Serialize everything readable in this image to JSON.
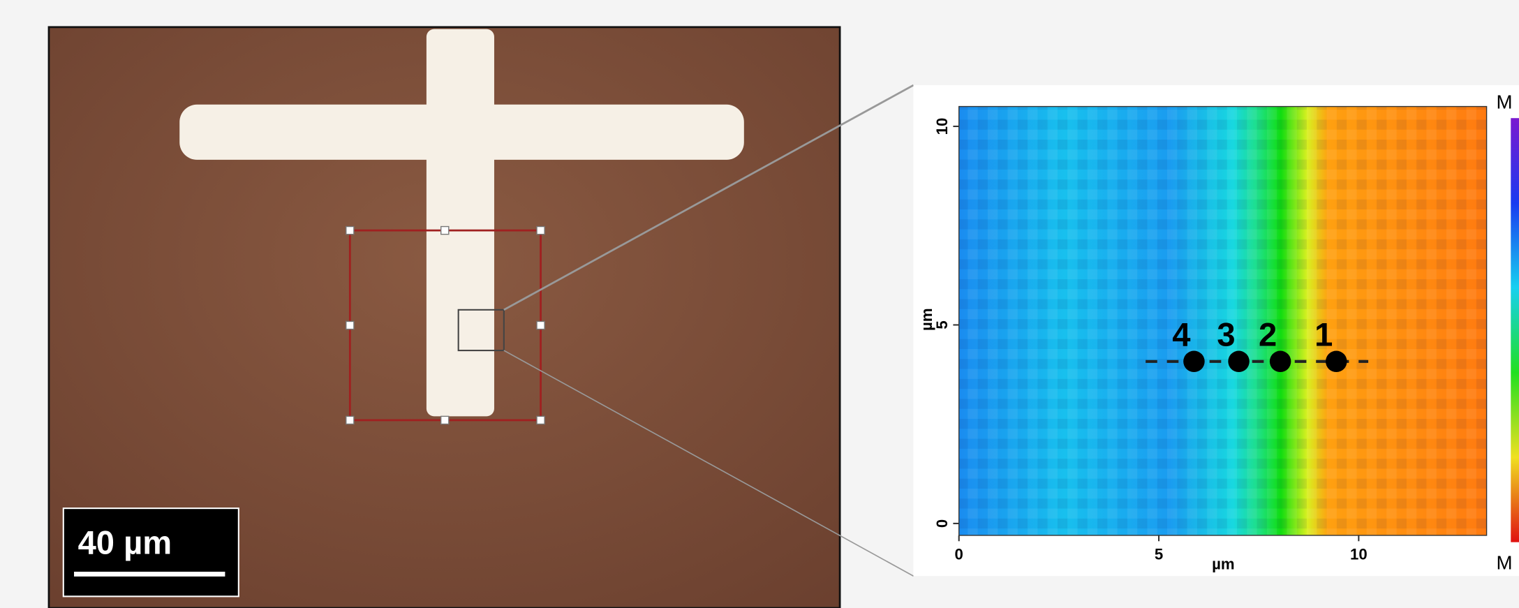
{
  "scale_bar": "40 µm",
  "chart_data": {
    "type": "heatmap",
    "x_label": "µm",
    "y_label": "µm",
    "xlim": [
      0,
      13.2
    ],
    "ylim": [
      -0.3,
      10.5
    ],
    "xticks": [
      0,
      5,
      10
    ],
    "yticks": [
      0,
      5,
      10
    ],
    "colorbar_top": "M",
    "colorbar_bottom": "M",
    "points": {
      "labels": [
        "1",
        "2",
        "3",
        "4"
      ],
      "x": [
        9.44,
        8.04,
        7.0,
        5.88
      ],
      "y": [
        4.08,
        4.08,
        4.08,
        4.08
      ]
    },
    "line": {
      "x": [
        4.67,
        10.24
      ],
      "y": [
        4.08,
        4.08
      ]
    }
  }
}
